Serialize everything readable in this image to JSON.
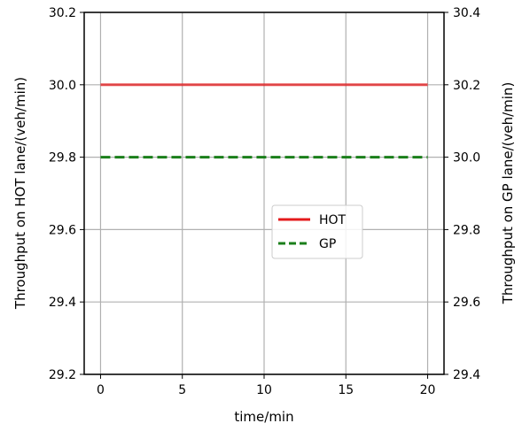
{
  "chart_data": {
    "type": "line",
    "xlabel": "time/min",
    "ylabel_left": "Throughput on HOT lane/(veh/min)",
    "ylabel_right": "Throughput on GP lane/(veh/min)",
    "xlim": [
      -1,
      21
    ],
    "ylim_left": [
      29.2,
      30.2
    ],
    "ylim_right": [
      29.4,
      30.4
    ],
    "x_ticks": [
      0,
      5,
      10,
      15,
      20
    ],
    "x_tick_labels": [
      "0",
      "5",
      "10",
      "15",
      "20"
    ],
    "y_ticks_left": [
      29.2,
      29.4,
      29.6,
      29.8,
      30.0,
      30.2
    ],
    "y_tick_labels_left": [
      "29.2",
      "29.4",
      "29.6",
      "29.8",
      "30.0",
      "30.2"
    ],
    "y_ticks_right": [
      29.4,
      29.6,
      29.8,
      30.0,
      30.2,
      30.4
    ],
    "y_tick_labels_right": [
      "29.4",
      "29.6",
      "29.8",
      "30.0",
      "30.2",
      "30.4"
    ],
    "grid": true,
    "legend_position": "center-right",
    "series": [
      {
        "name": "HOT",
        "axis": "left",
        "color": "#e41a1c",
        "style": "solid",
        "x": [
          0,
          20
        ],
        "y": [
          30.0,
          30.0
        ]
      },
      {
        "name": "GP",
        "axis": "right",
        "color": "#1a7f1a",
        "style": "dashed",
        "x": [
          0,
          20
        ],
        "y": [
          30.0,
          30.0
        ]
      }
    ]
  }
}
